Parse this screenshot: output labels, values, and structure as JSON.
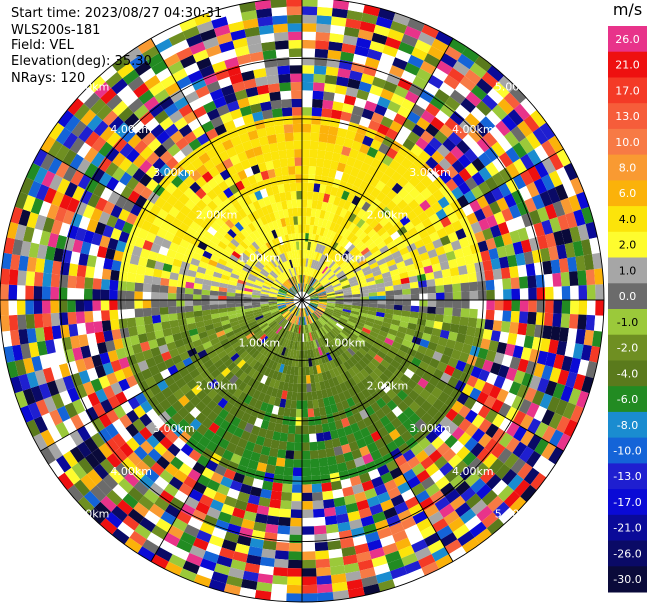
{
  "header": {
    "start_time": "Start time: 2023/08/27 04:30:31",
    "instrument": "WLS200s-181",
    "field": "Field: VEL",
    "elevation": "Elevation(deg): 35.30",
    "nrays": "NRays: 120"
  },
  "colorbar": {
    "unit": "m/s",
    "levels": [
      {
        "label": "26.0",
        "color": "#e8338a"
      },
      {
        "label": "21.0",
        "color": "#ee1010"
      },
      {
        "label": "17.0",
        "color": "#f43a26"
      },
      {
        "label": "13.0",
        "color": "#f65d3a"
      },
      {
        "label": "10.0",
        "color": "#f77a45"
      },
      {
        "label": "8.0",
        "color": "#f99a32"
      },
      {
        "label": "6.0",
        "color": "#fbb20a"
      },
      {
        "label": "4.0",
        "color": "#fce40a"
      },
      {
        "label": "2.0",
        "color": "#fefc2e"
      },
      {
        "label": "1.0",
        "color": "#a6a6a6"
      },
      {
        "label": "0.0",
        "color": "#6b6b6b"
      },
      {
        "label": "-1.0",
        "color": "#9bc93a"
      },
      {
        "label": "-2.0",
        "color": "#6f8f22"
      },
      {
        "label": "-4.0",
        "color": "#5a7a1c"
      },
      {
        "label": "-6.0",
        "color": "#228b22"
      },
      {
        "label": "-8.0",
        "color": "#1a8cd0"
      },
      {
        "label": "-10.0",
        "color": "#1464d8"
      },
      {
        "label": "-13.0",
        "color": "#1f1fd0"
      },
      {
        "label": "-17.0",
        "color": "#0a0ad6"
      },
      {
        "label": "-21.0",
        "color": "#0a0a99"
      },
      {
        "label": "-26.0",
        "color": "#0a0a66"
      },
      {
        "label": "-30.0",
        "color": "#0a0a3a"
      }
    ]
  },
  "chart_data": {
    "type": "heatmap",
    "title": "",
    "polar": true,
    "field": "VEL",
    "unit": "m/s",
    "rays": 120,
    "range_rings_km": [
      1.0,
      2.0,
      3.0,
      4.0,
      5.0
    ],
    "range_ring_labels": [
      "1.00km",
      "2.00km",
      "3.00km",
      "4.00km",
      "5.00km"
    ],
    "radials_deg": [
      0,
      30,
      60,
      90,
      120,
      150,
      180,
      210,
      240,
      270,
      300,
      330
    ],
    "max_range_km": 5.0,
    "value_pattern": {
      "north_inner_1to3km": "positive 2.0 to 6.0 m/s (yellow/orange)",
      "south_inner_1to3km": "negative -1.0 to -6.0 m/s (green)",
      "east_west_axis": "near 0.0 m/s (gray)",
      "beyond_3km": "noisy values across full range -30.0 to 26.0 m/s"
    }
  }
}
